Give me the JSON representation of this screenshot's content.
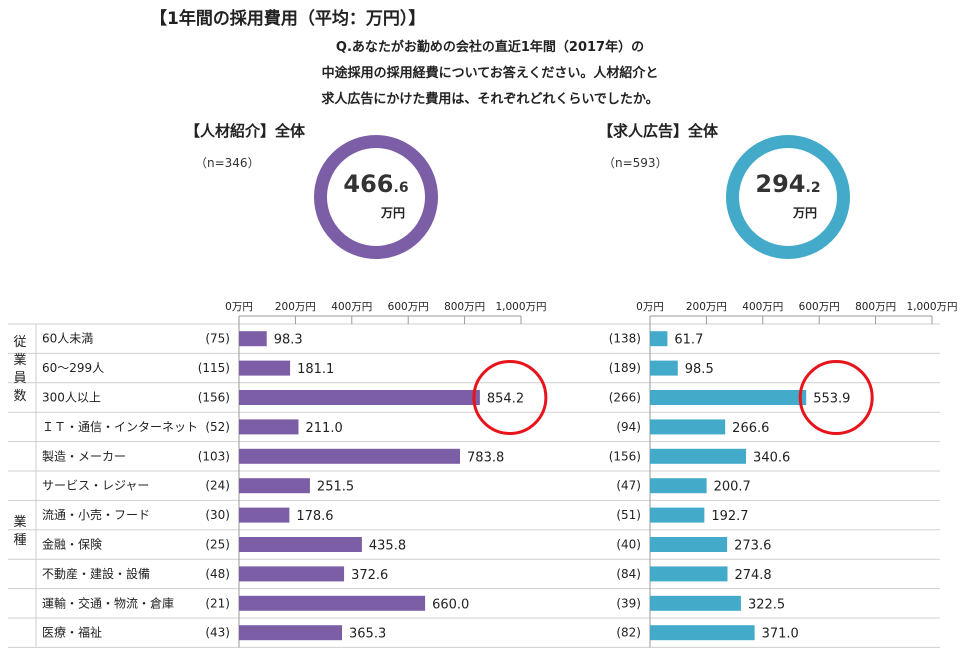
{
  "title": "【1年間の採用費用（平均：万円）】",
  "question": [
    "Q.あなたがお勤めの会社の直近1年間（2017年）の",
    "中途採用の採用経費についてお答えください。人材紹介と",
    "求人広告にかけた費用は、それぞれどれくらいでしたか。"
  ],
  "colors": {
    "left": "#7c5ea6",
    "right": "#43abc9",
    "highlight": "#e8141c",
    "grid": "#cfcfcf"
  },
  "groups": [
    {
      "label": "従業員数",
      "rows": [
        0,
        2
      ]
    },
    {
      "label": "業種",
      "rows": [
        3,
        10
      ]
    }
  ],
  "rows": [
    "60人未満",
    "60～299人",
    "300人以上",
    "ＩＴ・通信・インターネット",
    "製造・メーカー",
    "サービス・レジャー",
    "流通・小売・フード",
    "金融・保険",
    "不動産・建設・設備",
    "運輸・交通・物流・倉庫",
    "医療・福祉"
  ],
  "chart_data": [
    {
      "type": "bar",
      "title": "【人材紹介】全体",
      "n_label": "（n=346）",
      "total_int": "466",
      "total_dec": ".6",
      "total_unit": "万円",
      "categories": [
        "60人未満",
        "60～299人",
        "300人以上",
        "ＩＴ・通信・インターネット",
        "製造・メーカー",
        "サービス・レジャー",
        "流通・小売・フード",
        "金融・保険",
        "不動産・建設・設備",
        "運輸・交通・物流・倉庫",
        "医療・福祉"
      ],
      "counts": [
        "(75)",
        "(115)",
        "(156)",
        "(52)",
        "(103)",
        "(24)",
        "(30)",
        "(25)",
        "(48)",
        "(21)",
        "(43)"
      ],
      "values": [
        98.3,
        181.1,
        854.2,
        211.0,
        783.8,
        251.5,
        178.6,
        435.8,
        372.6,
        660.0,
        365.3
      ],
      "ticks": [
        "0万円",
        "200万円",
        "400万円",
        "600万円",
        "800万円",
        "1,000万円"
      ],
      "xlim": [
        0,
        1000
      ],
      "highlight_index": 2
    },
    {
      "type": "bar",
      "title": "【求人広告】全体",
      "n_label": "（n=593）",
      "total_int": "294",
      "total_dec": ".2",
      "total_unit": "万円",
      "categories": [
        "60人未満",
        "60～299人",
        "300人以上",
        "ＩＴ・通信・インターネット",
        "製造・メーカー",
        "サービス・レジャー",
        "流通・小売・フード",
        "金融・保険",
        "不動産・建設・設備",
        "運輸・交通・物流・倉庫",
        "医療・福祉"
      ],
      "counts": [
        "(138)",
        "(189)",
        "(266)",
        "(94)",
        "(156)",
        "(47)",
        "(51)",
        "(40)",
        "(84)",
        "(39)",
        "(82)"
      ],
      "values": [
        61.7,
        98.5,
        553.9,
        266.6,
        340.6,
        200.7,
        192.7,
        273.6,
        274.8,
        322.5,
        371.0
      ],
      "ticks": [
        "0万円",
        "200万円",
        "400万円",
        "600万円",
        "800万円",
        "1,000万円"
      ],
      "xlim": [
        0,
        1000
      ],
      "highlight_index": 2
    }
  ]
}
